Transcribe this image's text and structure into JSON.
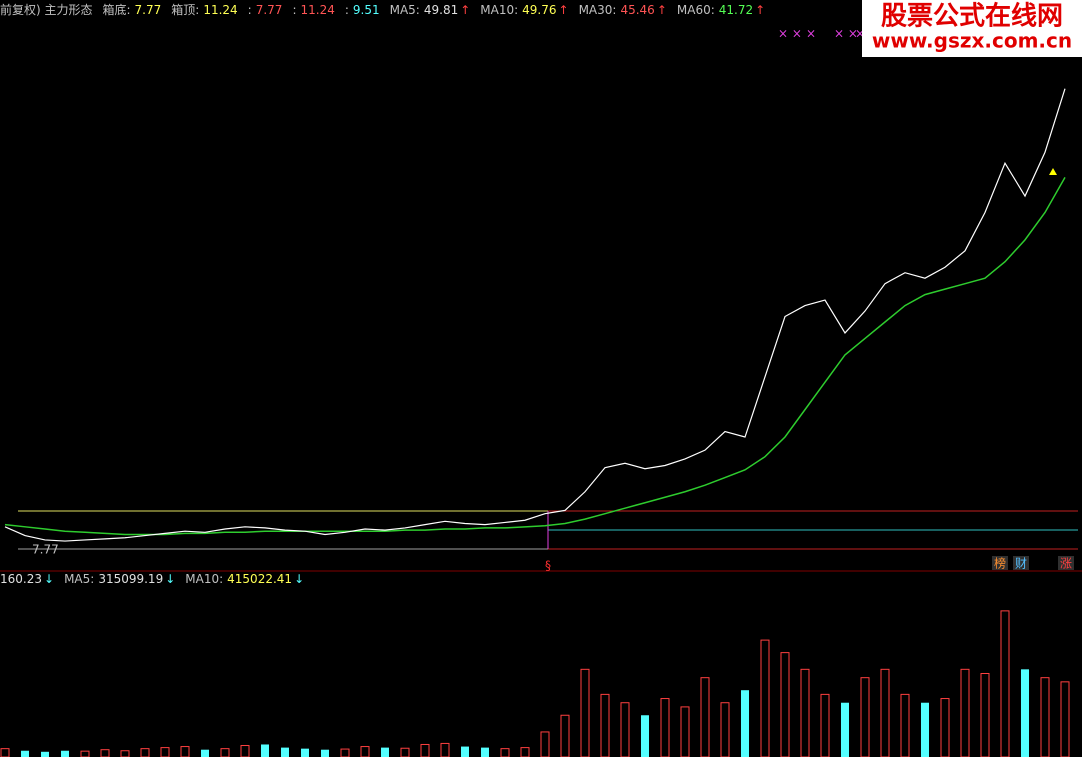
{
  "header": {
    "title": "前复权) 主力形态",
    "items": [
      {
        "label": "箱底:",
        "value": 7.77,
        "color": "#ffff54"
      },
      {
        "label": "箱顶:",
        "value": 11.24,
        "color": "#ffff54"
      },
      {
        "label": ":",
        "value": 7.77,
        "color": "#ff5454"
      },
      {
        "label": ":",
        "value": 11.24,
        "color": "#ff5454"
      },
      {
        "label": ":",
        "value": 9.51,
        "color": "#54ffff"
      },
      {
        "label": "MA5:",
        "value": 49.81,
        "trend": "↑",
        "color": "#e0e0e0"
      },
      {
        "label": "MA10:",
        "value": 49.76,
        "trend": "↑",
        "color": "#ffff54"
      },
      {
        "label": "MA30:",
        "value": 45.46,
        "trend": "↑",
        "color": "#ff5454"
      },
      {
        "label": "MA60:",
        "value": 41.72,
        "trend": "↑",
        "color": "#54ff54"
      }
    ]
  },
  "price_panel": {
    "ylim": [
      6.77,
      57.9
    ],
    "close_color": "#ffffff",
    "ma60_color": "#2ecc2e",
    "close": [
      9.8,
      9.0,
      8.6,
      8.5,
      8.6,
      8.7,
      8.8,
      9.0,
      9.2,
      9.4,
      9.3,
      9.6,
      9.8,
      9.7,
      9.5,
      9.4,
      9.1,
      9.3,
      9.6,
      9.5,
      9.7,
      10.0,
      10.3,
      10.1,
      10.0,
      10.2,
      10.4,
      11.0,
      11.3,
      13.0,
      15.2,
      15.6,
      15.1,
      15.4,
      16.0,
      16.8,
      18.5,
      18.0,
      23.5,
      29.0,
      30.0,
      30.5,
      27.5,
      29.5,
      32.0,
      33.0,
      32.5,
      33.5,
      35.0,
      38.5,
      43.0,
      40.0,
      44.0,
      49.8
    ],
    "ma60": [
      10.0,
      9.8,
      9.6,
      9.4,
      9.3,
      9.2,
      9.1,
      9.1,
      9.1,
      9.2,
      9.2,
      9.3,
      9.3,
      9.4,
      9.4,
      9.4,
      9.4,
      9.4,
      9.4,
      9.4,
      9.5,
      9.5,
      9.6,
      9.6,
      9.7,
      9.7,
      9.8,
      9.9,
      10.1,
      10.5,
      11.0,
      11.5,
      12.0,
      12.5,
      13.0,
      13.6,
      14.3,
      15.0,
      16.2,
      18.0,
      20.5,
      23.0,
      25.5,
      27.0,
      28.5,
      30.0,
      31.0,
      31.5,
      32.0,
      32.5,
      34.0,
      36.0,
      38.5,
      41.7
    ],
    "signal": "§",
    "badges": [
      "榜",
      "财",
      "涨"
    ]
  },
  "volume_header": {
    "items": [
      {
        "value": 160.23,
        "trend": "↓",
        "color": "#e0e0e0"
      },
      {
        "label": "MA5:",
        "value": 315099.19,
        "trend": "↓",
        "color": "#e0e0e0"
      },
      {
        "label": "MA10:",
        "value": 415022.41,
        "trend": "↓",
        "color": "#ffff54"
      }
    ]
  },
  "volume_panel": {
    "ylim": [
      0,
      800000
    ],
    "up_color": "#ff4040",
    "down_color": "#54ffff",
    "values": [
      40000,
      30000,
      25000,
      30000,
      28000,
      35000,
      30000,
      40000,
      45000,
      50000,
      35000,
      40000,
      55000,
      60000,
      45000,
      40000,
      35000,
      38000,
      50000,
      45000,
      42000,
      60000,
      65000,
      50000,
      45000,
      40000,
      45000,
      120000,
      200000,
      420000,
      300000,
      260000,
      200000,
      280000,
      240000,
      380000,
      260000,
      320000,
      560000,
      500000,
      420000,
      300000,
      260000,
      380000,
      420000,
      300000,
      260000,
      280000,
      420000,
      400000,
      700000,
      420000,
      380000,
      360000
    ]
  },
  "watermark": {
    "title": "股票公式在线网",
    "url": "www.gszx.com.cn"
  }
}
